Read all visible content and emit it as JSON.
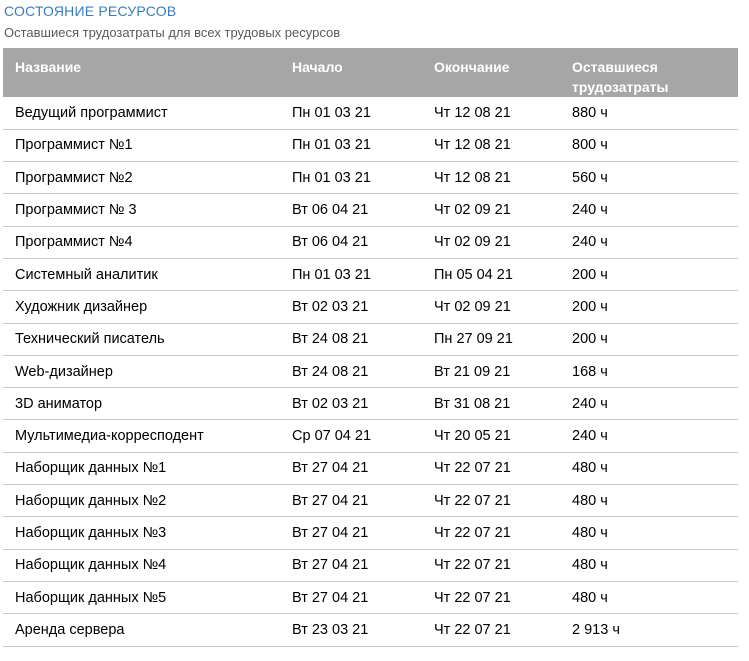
{
  "report": {
    "title": "СОСТОЯНИЕ РЕСУРСОВ",
    "subtitle": "Оставшиеся трудозатраты для всех трудовых ресурсов"
  },
  "table": {
    "headers": {
      "name": "Название",
      "start": "Начало",
      "end": "Окончание",
      "remaining_work": "Оставшиеся трудозатраты"
    },
    "rows": [
      {
        "name": "Ведущий программист",
        "start": "Пн 01 03 21",
        "end": "Чт 12 08 21",
        "remaining_work": "880 ч"
      },
      {
        "name": "Программист №1",
        "start": "Пн 01 03 21",
        "end": "Чт 12 08 21",
        "remaining_work": "800 ч"
      },
      {
        "name": "Программист №2",
        "start": "Пн 01 03 21",
        "end": "Чт 12 08 21",
        "remaining_work": "560 ч"
      },
      {
        "name": "Программист № 3",
        "start": "Вт 06 04 21",
        "end": "Чт 02 09 21",
        "remaining_work": "240 ч"
      },
      {
        "name": "Программист №4",
        "start": "Вт 06 04 21",
        "end": "Чт 02 09 21",
        "remaining_work": "240 ч"
      },
      {
        "name": "Системный аналитик",
        "start": "Пн 01 03 21",
        "end": "Пн 05 04 21",
        "remaining_work": "200 ч"
      },
      {
        "name": "Художник дизайнер",
        "start": "Вт 02 03 21",
        "end": "Чт 02 09 21",
        "remaining_work": "200 ч"
      },
      {
        "name": "Технический писатель",
        "start": "Вт 24 08 21",
        "end": "Пн 27 09 21",
        "remaining_work": "200 ч"
      },
      {
        "name": "Web-дизайнер",
        "start": "Вт 24 08 21",
        "end": "Вт 21 09 21",
        "remaining_work": "168 ч"
      },
      {
        "name": "3D аниматор",
        "start": "Вт 02 03 21",
        "end": "Вт 31 08 21",
        "remaining_work": "240 ч"
      },
      {
        "name": "Мультимедиа-корресподент",
        "start": "Ср 07 04 21",
        "end": "Чт 20 05 21",
        "remaining_work": "240 ч"
      },
      {
        "name": "Наборщик данных №1",
        "start": "Вт 27 04 21",
        "end": "Чт 22 07 21",
        "remaining_work": "480 ч"
      },
      {
        "name": "Наборщик данных №2",
        "start": "Вт 27 04 21",
        "end": "Чт 22 07 21",
        "remaining_work": "480 ч"
      },
      {
        "name": "Наборщик данных №3",
        "start": "Вт 27 04 21",
        "end": "Чт 22 07 21",
        "remaining_work": "480 ч"
      },
      {
        "name": "Наборщик данных №4",
        "start": "Вт 27 04 21",
        "end": "Чт 22 07 21",
        "remaining_work": "480 ч"
      },
      {
        "name": "Наборщик данных №5",
        "start": "Вт 27 04 21",
        "end": "Чт 22 07 21",
        "remaining_work": "480 ч"
      },
      {
        "name": "Аренда сервера",
        "start": "Вт 23 03 21",
        "end": "Чт 22 07 21",
        "remaining_work": "2 913 ч"
      }
    ]
  },
  "colors": {
    "title": "#3b7dbb",
    "subtitle": "#595959",
    "header_bg": "#a6a6a6",
    "header_text": "#ffffff",
    "row_separator": "#c8c8c8"
  }
}
